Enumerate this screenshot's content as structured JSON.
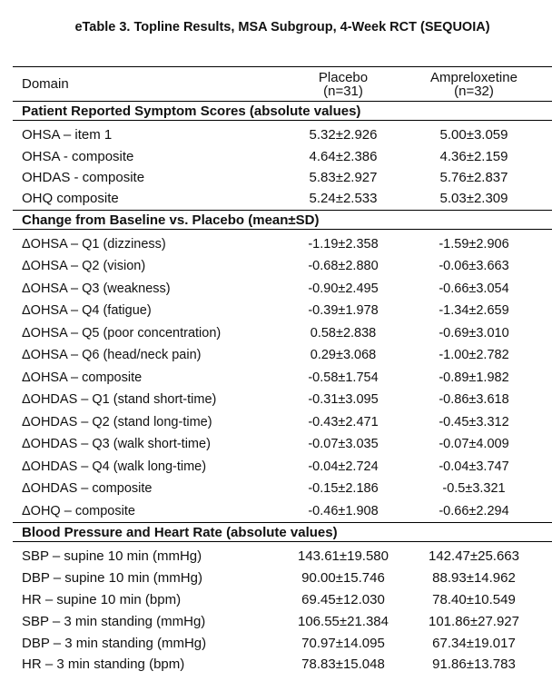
{
  "title": "eTable 3. Topline Results, MSA Subgroup, 4-Week RCT (SEQUOIA)",
  "header": {
    "domain": "Domain",
    "placebo": "Placebo",
    "placebo_n": "(n=31)",
    "ampreloxetine": "Ampreloxetine",
    "ampreloxetine_n": "(n=32)"
  },
  "sections": [
    {
      "title": "Patient Reported Symptom Scores (absolute values)",
      "rows": [
        [
          "OHSA – item 1",
          "5.32±2.926",
          "5.00±3.059"
        ],
        [
          "OHSA - composite",
          "4.64±2.386",
          "4.36±2.159"
        ],
        [
          "OHDAS - composite",
          "5.83±2.927",
          "5.76±2.837"
        ],
        [
          "OHQ composite",
          "5.24±2.533",
          "5.03±2.309"
        ]
      ]
    },
    {
      "title": "Change from Baseline vs. Placebo (mean±SD)",
      "rows": [
        [
          "ΔOHSA – Q1 (dizziness)",
          "-1.19±2.358",
          "-1.59±2.906"
        ],
        [
          "ΔOHSA – Q2 (vision)",
          "-0.68±2.880",
          "-0.06±3.663"
        ],
        [
          "ΔOHSA – Q3 (weakness)",
          "-0.90±2.495",
          "-0.66±3.054"
        ],
        [
          "ΔOHSA – Q4 (fatigue)",
          "-0.39±1.978",
          "-1.34±2.659"
        ],
        [
          "ΔOHSA – Q5 (poor concentration)",
          "0.58±2.838",
          "-0.69±3.010"
        ],
        [
          "ΔOHSA – Q6 (head/neck pain)",
          "0.29±3.068",
          "-1.00±2.782"
        ],
        [
          "ΔOHSA – composite",
          "-0.58±1.754",
          "-0.89±1.982"
        ],
        [
          "ΔOHDAS – Q1 (stand short-time)",
          "-0.31±3.095",
          "-0.86±3.618"
        ],
        [
          "ΔOHDAS – Q2 (stand long-time)",
          "-0.43±2.471",
          "-0.45±3.312"
        ],
        [
          "ΔOHDAS – Q3 (walk short-time)",
          "-0.07±3.035",
          "-0.07±4.009"
        ],
        [
          "ΔOHDAS – Q4 (walk long-time)",
          "-0.04±2.724",
          "-0.04±3.747"
        ],
        [
          "ΔOHDAS – composite",
          "-0.15±2.186",
          "-0.5±3.321"
        ],
        [
          "ΔOHQ – composite",
          "-0.46±1.908",
          "-0.66±2.294"
        ]
      ]
    },
    {
      "title": "Blood Pressure and Heart Rate (absolute values)",
      "rows": [
        [
          "SBP – supine 10 min (mmHg)",
          "143.61±19.580",
          "142.47±25.663"
        ],
        [
          "DBP – supine 10 min (mmHg)",
          "90.00±15.746",
          "88.93±14.962"
        ],
        [
          "HR – supine 10 min (bpm)",
          "69.45±12.030",
          "78.40±10.549"
        ],
        [
          "SBP – 3 min standing (mmHg)",
          "106.55±21.384",
          "101.86±27.927"
        ],
        [
          "DBP – 3 min standing (mmHg)",
          "70.97±14.095",
          "67.34±19.017"
        ],
        [
          "HR – 3 min standing (bpm)",
          "78.83±15.048",
          "91.86±13.783"
        ]
      ]
    }
  ]
}
